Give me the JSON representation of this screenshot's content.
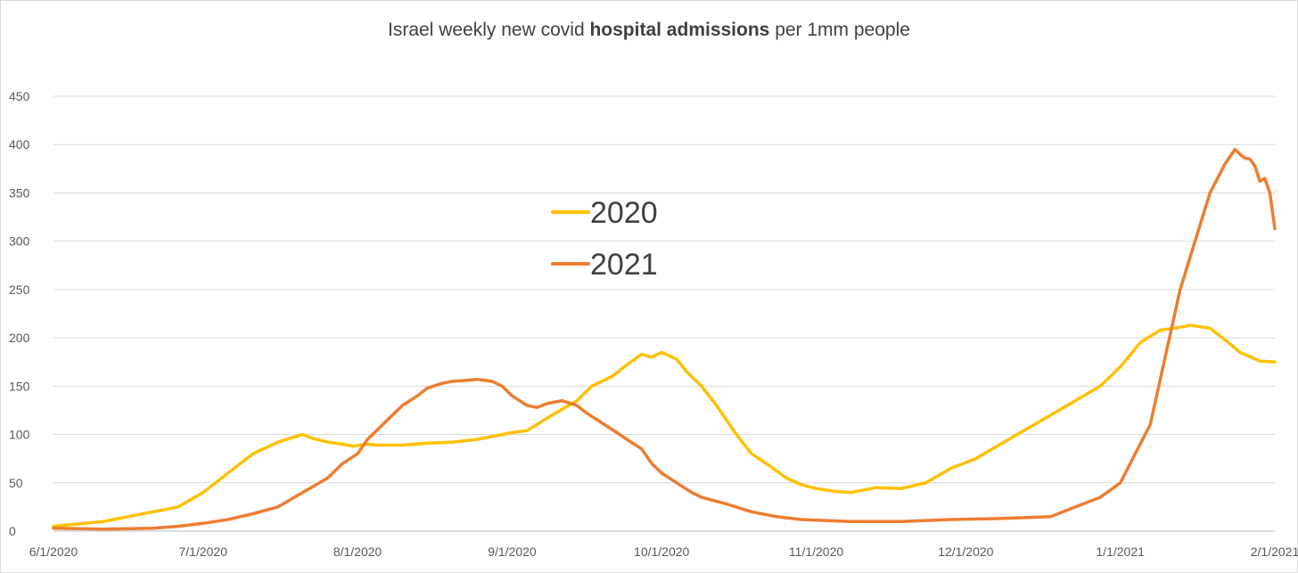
{
  "chart_data": {
    "type": "line",
    "title_prefix": "Israel weekly new covid ",
    "title_bold": "hospital admissions",
    "title_suffix": " per 1mm people",
    "xlabel": "",
    "ylabel": "",
    "ylim": [
      0,
      450
    ],
    "y_ticks": [
      "0",
      "50",
      "100",
      "150",
      "200",
      "250",
      "300",
      "350",
      "400",
      "450"
    ],
    "x_tick_labels": [
      "6/1/2020",
      "7/1/2020",
      "8/1/2020",
      "9/1/2020",
      "10/1/2020",
      "11/1/2020",
      "12/1/2020",
      "1/1/2021",
      "2/1/2021"
    ],
    "x_tick_days": [
      0,
      30,
      61,
      92,
      122,
      153,
      183,
      214,
      245
    ],
    "x_range_days": [
      0,
      245
    ],
    "grid": true,
    "legend_position": "center-left",
    "series": [
      {
        "name": "2020",
        "color": "#FFC000",
        "x": [
          0,
          10,
          20,
          25,
          30,
          35,
          40,
          45,
          50,
          52,
          55,
          58,
          60,
          63,
          65,
          70,
          75,
          80,
          85,
          90,
          92,
          95,
          100,
          105,
          108,
          112,
          115,
          118,
          120,
          122,
          125,
          127,
          130,
          133,
          137,
          140,
          143,
          147,
          150,
          153,
          157,
          160,
          165,
          170,
          175,
          180,
          185,
          190,
          195,
          200,
          205,
          210,
          214,
          218,
          222,
          225,
          228,
          232,
          235,
          238,
          242,
          245
        ],
        "values": [
          5,
          10,
          20,
          25,
          40,
          60,
          80,
          92,
          100,
          96,
          92,
          90,
          88,
          90,
          89,
          89,
          91,
          92,
          95,
          100,
          102,
          104,
          120,
          135,
          150,
          160,
          172,
          183,
          180,
          185,
          178,
          165,
          150,
          130,
          100,
          80,
          70,
          55,
          48,
          44,
          41,
          40,
          45,
          44,
          50,
          65,
          75,
          90,
          105,
          120,
          135,
          150,
          170,
          195,
          208,
          210,
          213,
          210,
          198,
          185,
          176,
          175
        ]
      },
      {
        "name": "2021",
        "color": "#ED7D31",
        "x": [
          0,
          10,
          20,
          25,
          30,
          35,
          40,
          45,
          50,
          55,
          58,
          61,
          63,
          65,
          68,
          70,
          73,
          75,
          78,
          80,
          83,
          85,
          88,
          90,
          92,
          95,
          97,
          99,
          102,
          105,
          107,
          110,
          113,
          115,
          118,
          120,
          122,
          125,
          128,
          130,
          135,
          140,
          145,
          150,
          155,
          160,
          170,
          180,
          190,
          200,
          205,
          210,
          214,
          217,
          220,
          223,
          226,
          229,
          232,
          235,
          237,
          238,
          239,
          240,
          241,
          242,
          243,
          244,
          245
        ],
        "values": [
          3,
          2,
          3,
          5,
          8,
          12,
          18,
          25,
          40,
          55,
          70,
          80,
          95,
          105,
          120,
          130,
          140,
          148,
          153,
          155,
          156,
          157,
          155,
          150,
          140,
          130,
          128,
          132,
          135,
          130,
          122,
          112,
          102,
          95,
          85,
          70,
          60,
          50,
          40,
          35,
          28,
          20,
          15,
          12,
          11,
          10,
          10,
          12,
          13,
          15,
          25,
          35,
          50,
          80,
          110,
          180,
          250,
          300,
          350,
          380,
          395,
          390,
          386,
          385,
          378,
          362,
          365,
          350,
          313
        ]
      }
    ]
  }
}
